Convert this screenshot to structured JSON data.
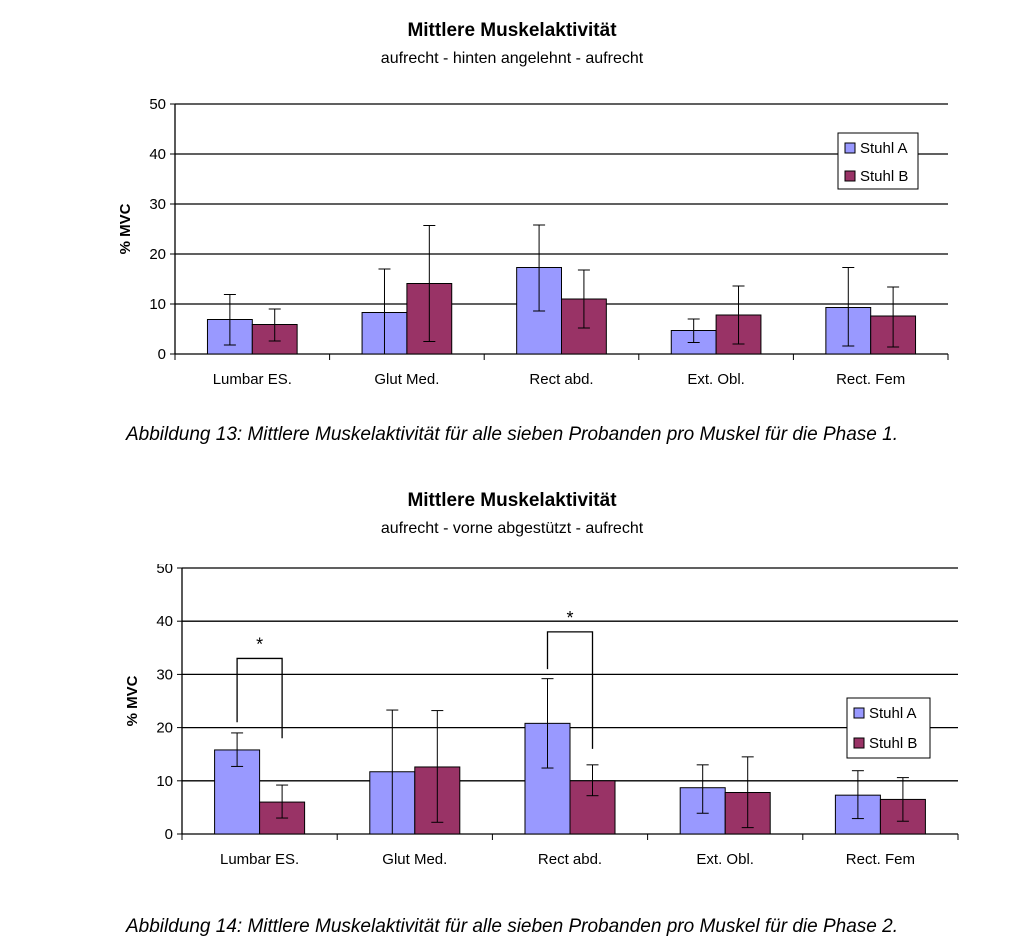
{
  "chart_data": [
    {
      "type": "bar",
      "title": "Mittlere Muskelaktivität",
      "subtitle": "aufrecht - hinten angelehnt - aufrecht",
      "ylabel": "% MVC",
      "ylim": [
        0,
        50
      ],
      "yticks": [
        0,
        10,
        20,
        30,
        40,
        50
      ],
      "categories": [
        "Lumbar ES.",
        "Glut Med.",
        "Rect abd.",
        "Ext. Obl.",
        "Rect. Fem"
      ],
      "series": [
        {
          "name": "Stuhl A",
          "color": "#9999ff",
          "values": [
            6.9,
            8.3,
            17.3,
            4.7,
            9.3
          ],
          "err_low": [
            1.8,
            0,
            8.6,
            2.3,
            1.6
          ],
          "err_high": [
            11.9,
            17.0,
            25.8,
            7.0,
            17.3
          ]
        },
        {
          "name": "Stuhl B",
          "color": "#993366",
          "values": [
            5.9,
            14.1,
            11.0,
            7.8,
            7.6
          ],
          "err_low": [
            2.6,
            2.5,
            5.2,
            2.0,
            1.4
          ],
          "err_high": [
            9.0,
            25.7,
            16.8,
            13.6,
            13.4
          ]
        }
      ],
      "legend": "top-right",
      "grid": true,
      "caption": "Abbildung 13: Mittlere Muskelaktivität für alle sieben Probanden pro Muskel für die Phase 1.",
      "significance": []
    },
    {
      "type": "bar",
      "title": "Mittlere Muskelaktivität",
      "subtitle": "aufrecht - vorne abgestützt - aufrecht",
      "ylabel": "% MVC",
      "ylim": [
        0,
        50
      ],
      "yticks": [
        0,
        10,
        20,
        30,
        40,
        50
      ],
      "categories": [
        "Lumbar ES.",
        "Glut Med.",
        "Rect abd.",
        "Ext. Obl.",
        "Rect. Fem"
      ],
      "series": [
        {
          "name": "Stuhl A",
          "color": "#9999ff",
          "values": [
            15.8,
            11.7,
            20.8,
            8.7,
            7.3
          ],
          "err_low": [
            12.7,
            0,
            12.4,
            3.9,
            2.9
          ],
          "err_high": [
            19.0,
            23.3,
            29.2,
            13.0,
            11.9
          ]
        },
        {
          "name": "Stuhl B",
          "color": "#993366",
          "values": [
            6.0,
            12.6,
            10.0,
            7.8,
            6.5
          ],
          "err_low": [
            3.0,
            2.2,
            7.2,
            1.2,
            2.4
          ],
          "err_high": [
            9.2,
            23.2,
            13.0,
            14.5,
            10.6
          ]
        }
      ],
      "legend": "top-right",
      "grid": true,
      "caption": "Abbildung 14: Mittlere Muskelaktivität für alle sieben Probanden pro Muskel für die Phase 2.",
      "significance": [
        {
          "category": 0,
          "label": "*",
          "bracket_y": 33,
          "left_bottom": 21,
          "right_bottom": 18
        },
        {
          "category": 2,
          "label": "*",
          "bracket_y": 38,
          "left_bottom": 31,
          "right_bottom": 16
        }
      ]
    }
  ]
}
